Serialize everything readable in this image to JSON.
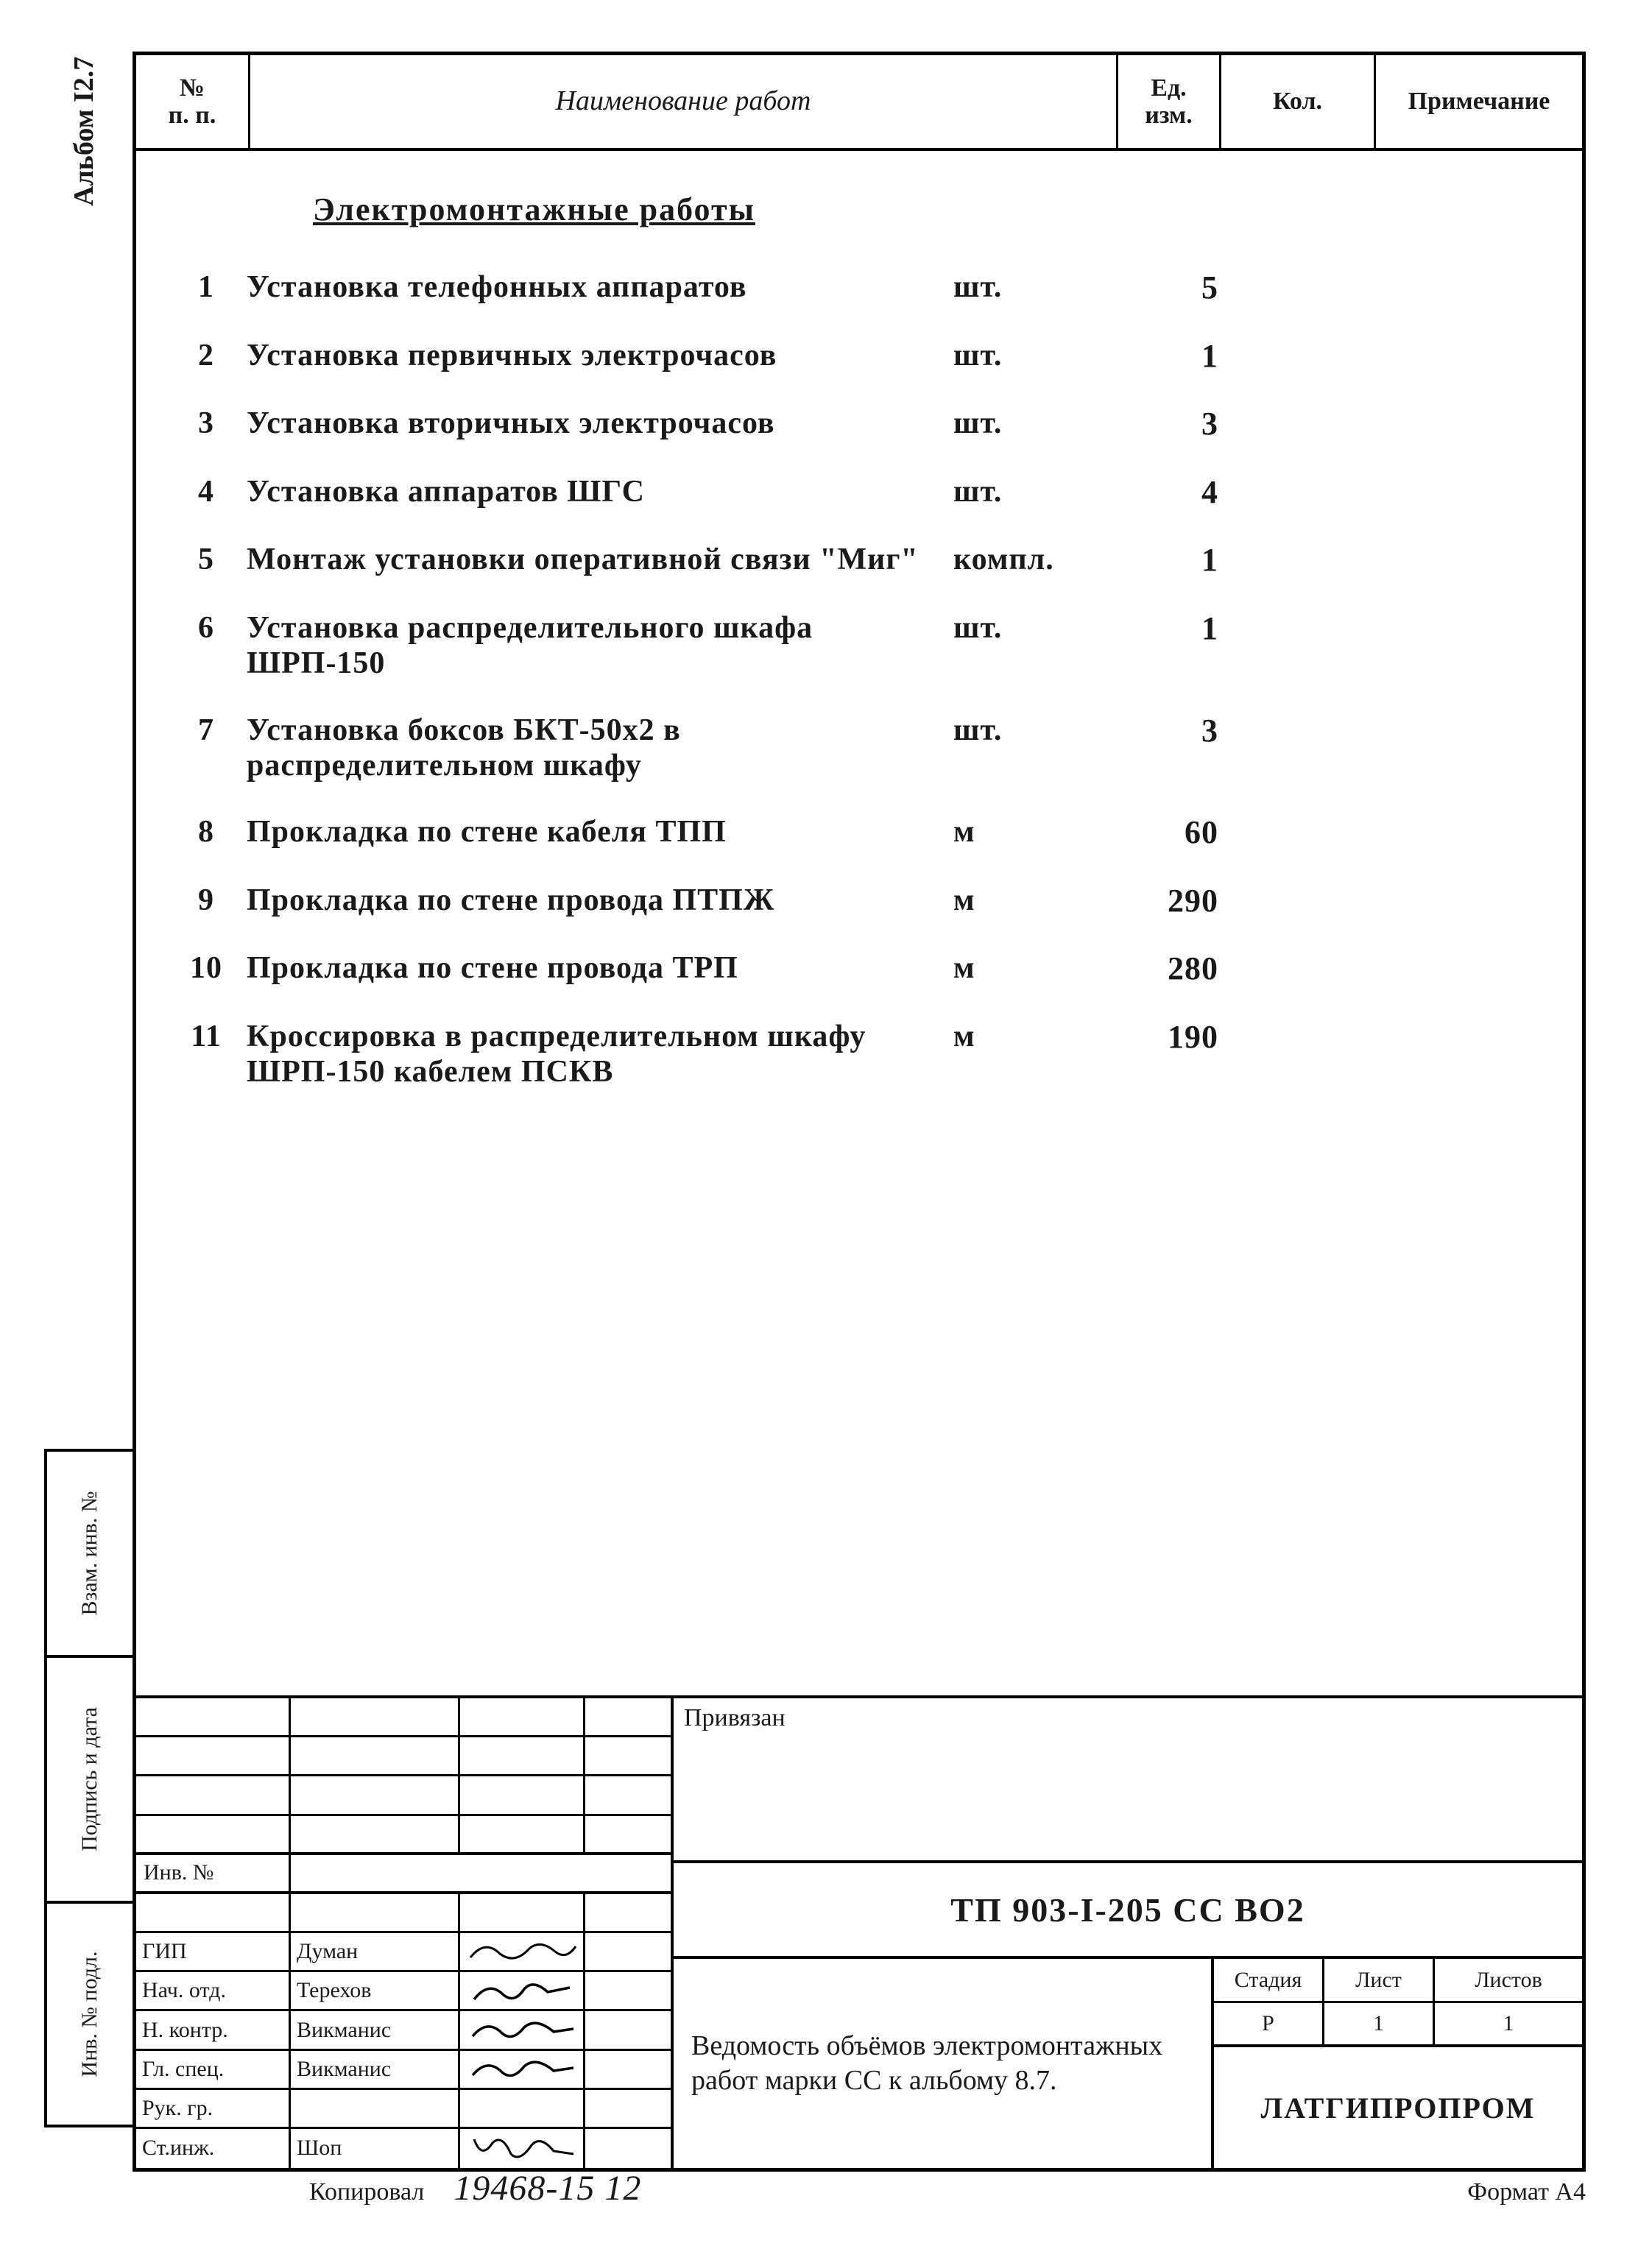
{
  "sidebar": {
    "album": "Альбом I2.7",
    "box1": "Взам. инв. №",
    "box2": "Подпись и дата",
    "box3": "Инв. № подл."
  },
  "header": {
    "col_num": "№\nп. п.",
    "col_name": "Наименование работ",
    "col_unit": "Ед.\nизм.",
    "col_qty": "Кол.",
    "col_note": "Примечание"
  },
  "section_title": "Электромонтажные работы",
  "rows": [
    {
      "n": "1",
      "name": "Установка телефонных аппаратов",
      "unit": "шт.",
      "qty": "5"
    },
    {
      "n": "2",
      "name": "Установка первичных электрочасов",
      "unit": "шт.",
      "qty": "1"
    },
    {
      "n": "3",
      "name": "Установка вторичных электрочасов",
      "unit": "шт.",
      "qty": "3"
    },
    {
      "n": "4",
      "name": "Установка аппаратов ШГС",
      "unit": "шт.",
      "qty": "4"
    },
    {
      "n": "5",
      "name": "Монтаж установки оперативной связи \"Миг\"",
      "unit": "компл.",
      "qty": "1"
    },
    {
      "n": "6",
      "name": "Установка распределительного шкафа ШРП-150",
      "unit": "шт.",
      "qty": "1"
    },
    {
      "n": "7",
      "name": "Установка боксов БКТ-50х2 в распределительном шкафу",
      "unit": "шт.",
      "qty": "3"
    },
    {
      "n": "8",
      "name": "Прокладка по стене кабеля ТПП",
      "unit": "м",
      "qty": "60"
    },
    {
      "n": "9",
      "name": "Прокладка по стене провода ПТПЖ",
      "unit": "м",
      "qty": "290"
    },
    {
      "n": "10",
      "name": "Прокладка по стене провода ТРП",
      "unit": "м",
      "qty": "280"
    },
    {
      "n": "11",
      "name": "Кроссировка в распределительном шкафу ШРП-150 кабелем ПСКВ",
      "unit": "м",
      "qty": "190"
    }
  ],
  "stamp": {
    "priv": "Привязан",
    "inv_label": "Инв. №",
    "roles": {
      "gip": {
        "role": "ГИП",
        "name": "Думан"
      },
      "nach": {
        "role": "Нач. отд.",
        "name": "Терехов"
      },
      "nkontr": {
        "role": "Н. контр.",
        "name": "Викманис"
      },
      "glspec": {
        "role": "Гл. спец.",
        "name": "Викманис"
      },
      "rukgr": {
        "role": "Рук. гр.",
        "name": ""
      },
      "stinj": {
        "role": "Ст.инж.",
        "name": "Шоп"
      }
    },
    "code": "ТП 903-I-205 СС ВО2",
    "title": "Ведомость объёмов электромонтажных работ марки СС к альбому 8.7.",
    "cols": {
      "stage_h": "Стадия",
      "sheet_h": "Лист",
      "sheets_h": "Листов",
      "stage": "Р",
      "sheet": "1",
      "sheets": "1"
    },
    "org": "ЛАТГИПРОПРОМ"
  },
  "footer": {
    "kop": "Копировал",
    "num": "19468-15   12",
    "fmt": "Формат А4"
  },
  "colors": {
    "ink": "#1a1a1a",
    "paper": "#ffffff",
    "line": "#000000"
  }
}
